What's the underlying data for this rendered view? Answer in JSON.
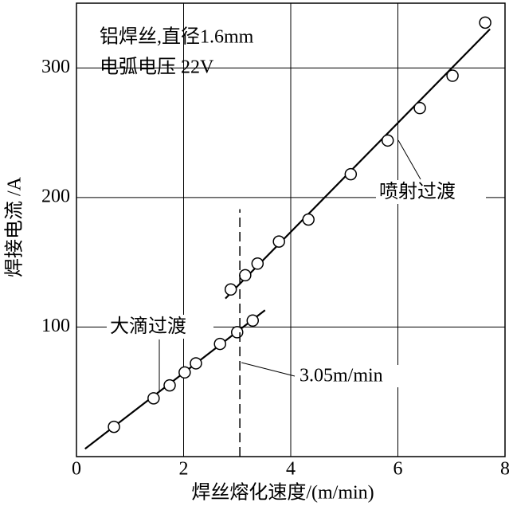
{
  "chart_data": {
    "type": "scatter",
    "x_label": "焊丝熔化速度/(m/min)",
    "y_label": "焊接电流 /A",
    "annotations": [
      "铝焊丝,直径1.6mm",
      "电弧电压 22V"
    ],
    "xlim": [
      0,
      8
    ],
    "xticks": [
      0,
      2,
      4,
      6,
      8
    ],
    "ylim": [
      0,
      350
    ],
    "yticks": [
      100,
      200,
      300
    ],
    "grid": true,
    "series": [
      {
        "name": "大滴过渡",
        "color": "#000000",
        "x": [
          0.7,
          1.44,
          1.74,
          2.02,
          2.23,
          2.68,
          3.0,
          3.29
        ],
        "values": [
          23,
          45,
          55,
          65,
          72,
          87,
          96,
          105
        ],
        "fit": {
          "x": [
            0.16,
            3.52
          ],
          "values": [
            6,
            113
          ]
        }
      },
      {
        "name": "喷射过渡",
        "color": "#000000",
        "x": [
          2.88,
          3.15,
          3.38,
          3.78,
          4.33,
          5.12,
          5.81,
          6.41,
          7.02,
          7.63
        ],
        "values": [
          129,
          140,
          149,
          166,
          183,
          218,
          244,
          269,
          294,
          335
        ],
        "fit": {
          "x": [
            2.78,
            7.72
          ],
          "values": [
            122,
            330
          ]
        }
      }
    ],
    "vline": {
      "x": 3.05,
      "y": [
        0,
        191
      ],
      "label": "3.05m/min"
    }
  }
}
